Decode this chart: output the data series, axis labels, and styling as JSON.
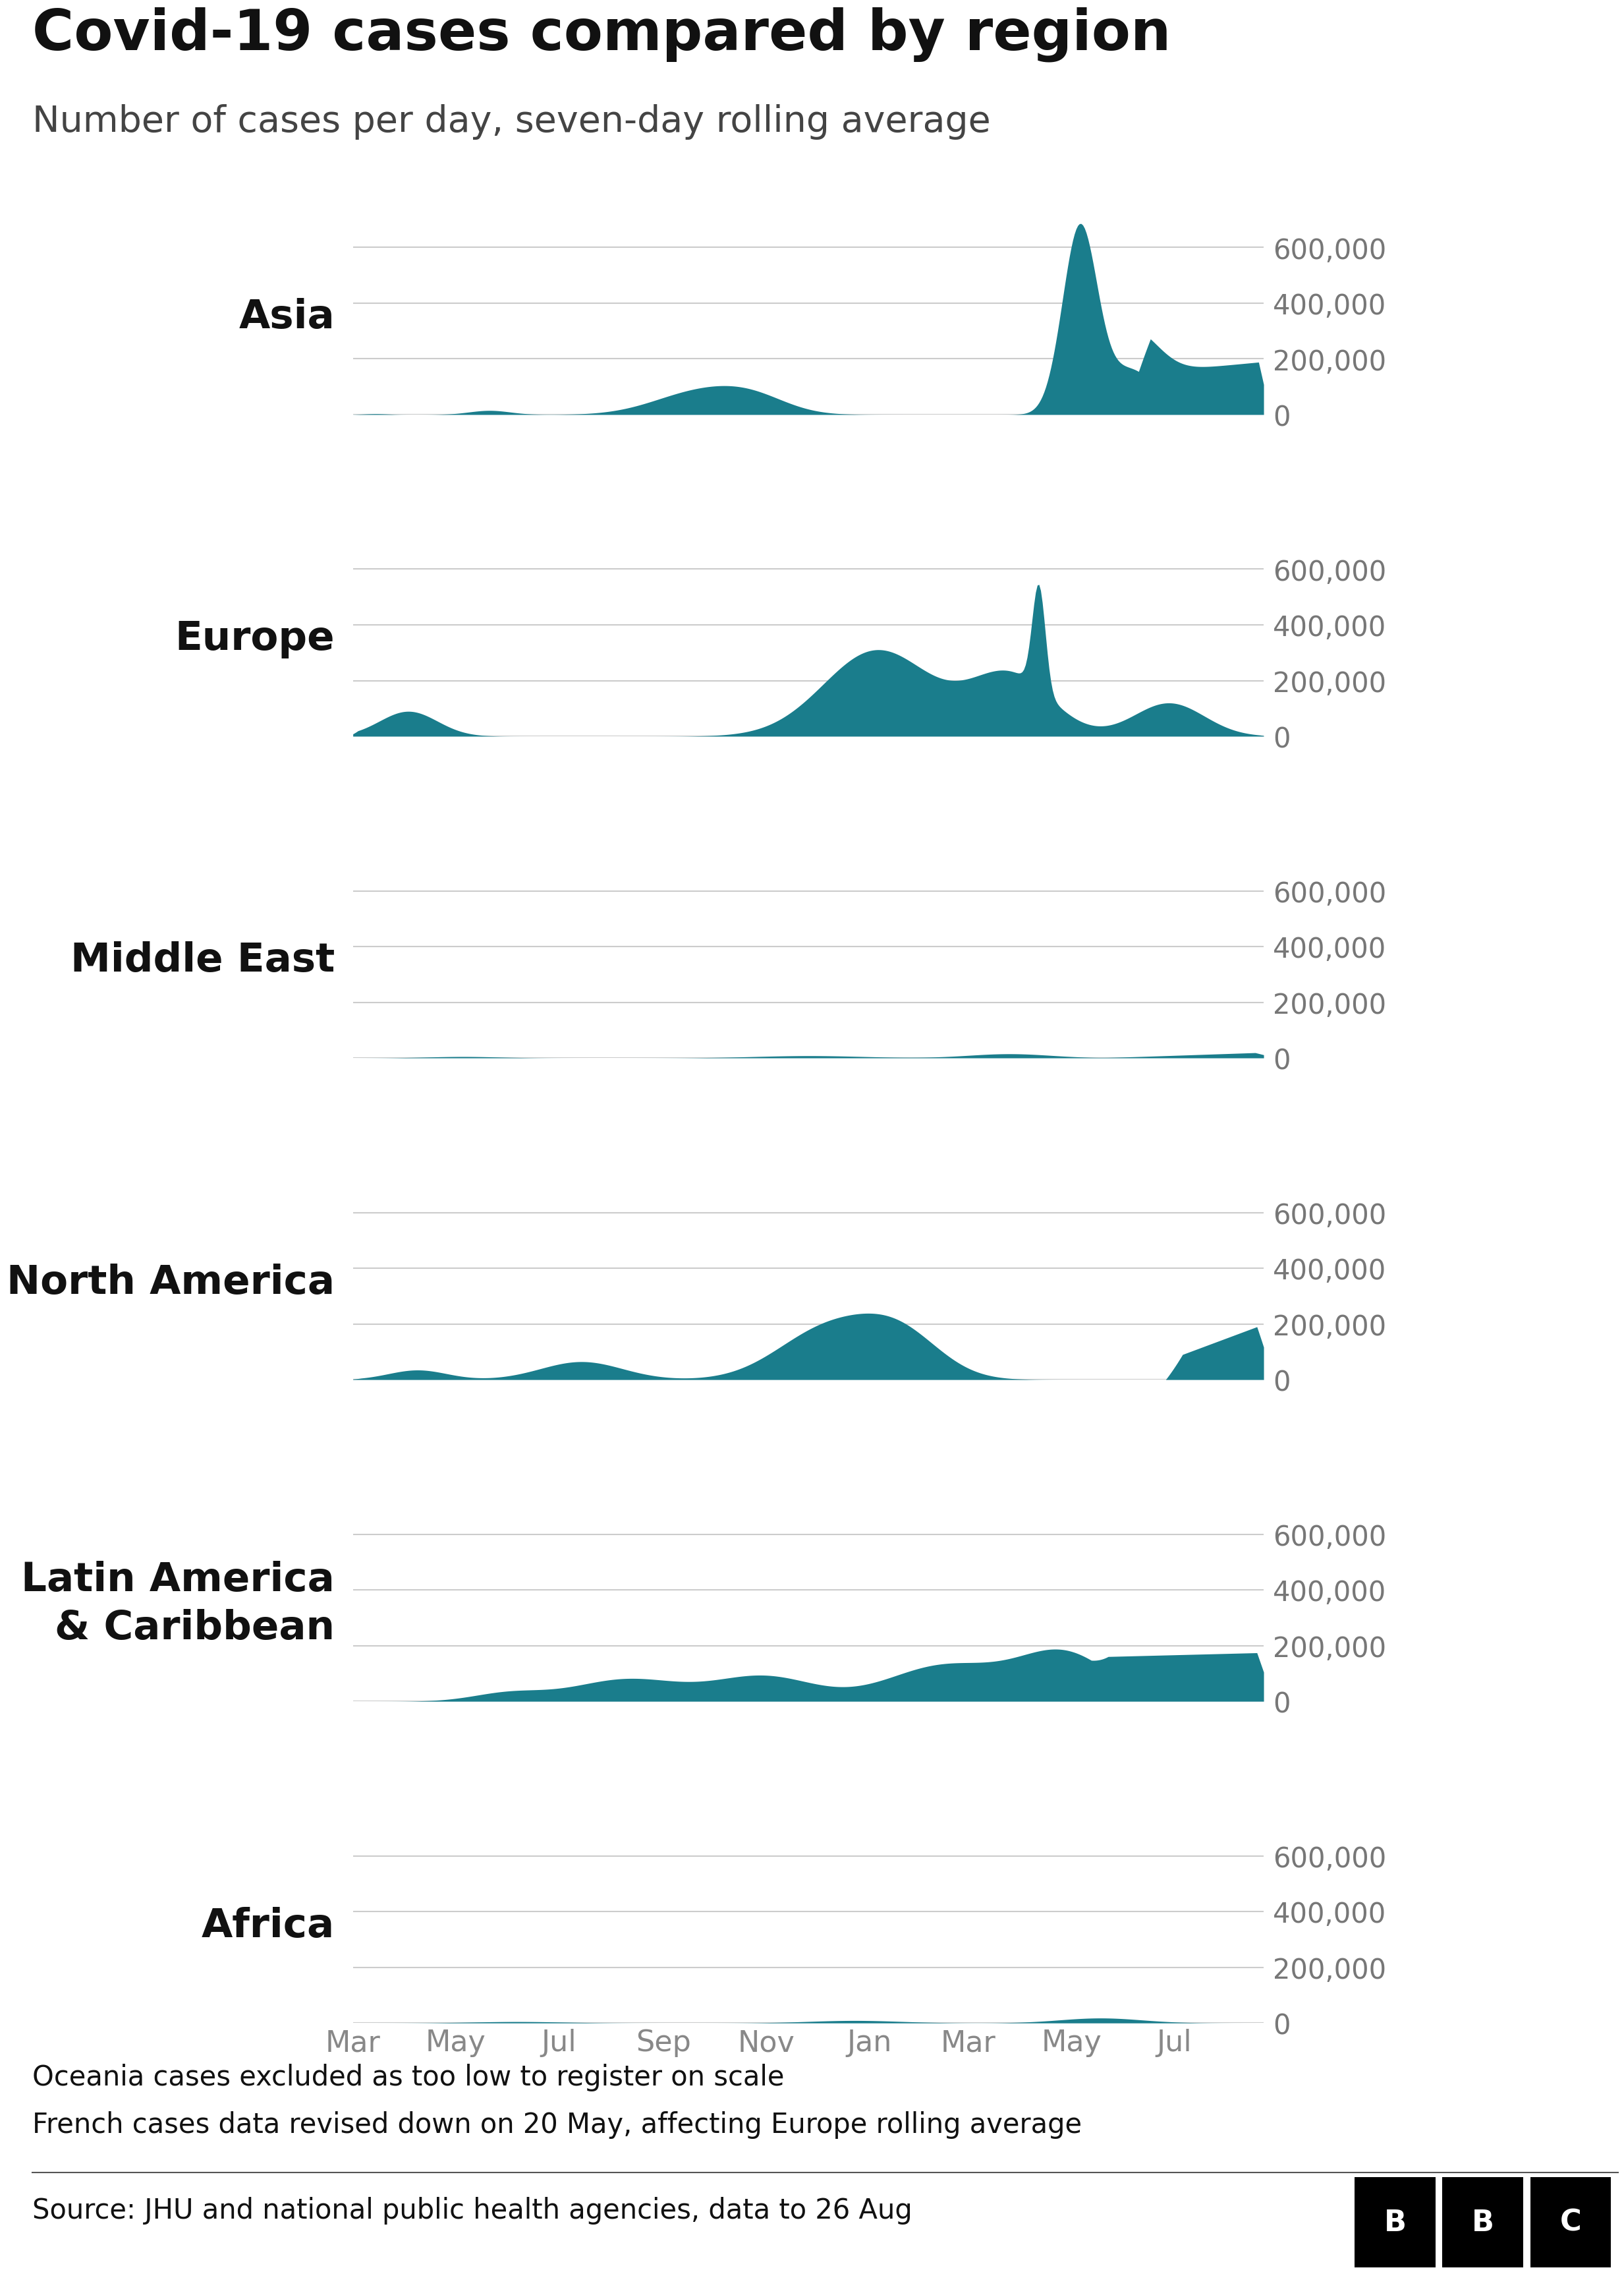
{
  "title": "Covid-19 cases compared by region",
  "subtitle": "Number of cases per day, seven-day rolling average",
  "regions": [
    "Asia",
    "Europe",
    "Middle East",
    "North America",
    "Latin America\n& Caribbean",
    "Africa"
  ],
  "fill_color": "#1a7d8c",
  "y_max": 700000,
  "y_ticks": [
    0,
    200000,
    400000,
    600000
  ],
  "y_tick_labels": [
    "0",
    "200,000",
    "400,000",
    "600,000"
  ],
  "x_tick_labels": [
    "Mar",
    "May",
    "Jul",
    "Sep",
    "Nov",
    "Jan",
    "Mar",
    "May",
    "Jul"
  ],
  "footnote1": "Oceania cases excluded as too low to register on scale",
  "footnote2": "French cases data revised down on 20 May, affecting Europe rolling average",
  "source": "Source: JHU and national public health agencies, data to 26 Aug",
  "background_color": "#ffffff",
  "grid_color": "#cccccc",
  "title_fontsize": 62,
  "subtitle_fontsize": 40,
  "region_label_fontsize": 44,
  "axis_label_fontsize": 30,
  "footnote_fontsize": 30,
  "source_fontsize": 30
}
